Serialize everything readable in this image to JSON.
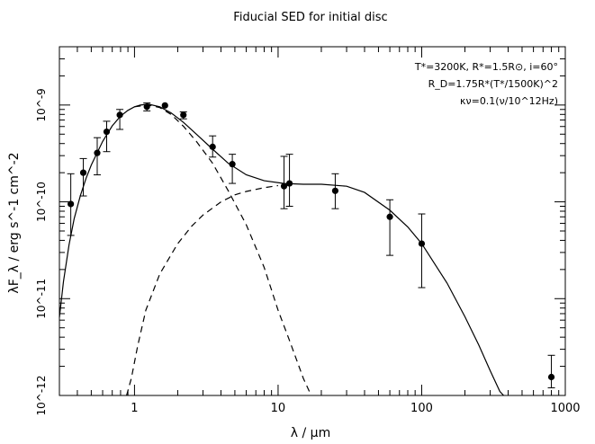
{
  "chart_data": {
    "type": "scatter",
    "title": "Fiducial SED for initial disc",
    "xlabel": "λ / μm",
    "ylabel": "λF_λ / erg s^-1 cm^-2",
    "xscale": "log",
    "yscale": "log",
    "xlim": [
      0.3,
      1000
    ],
    "ylim": [
      1e-12,
      4e-09
    ],
    "x_ticks": [
      1,
      10,
      100,
      1000
    ],
    "x_tick_labels": [
      "1",
      "10",
      "100",
      "1000"
    ],
    "y_ticks": [
      1e-12,
      1e-11,
      1e-10,
      1e-09
    ],
    "y_tick_labels": [
      "10^-12",
      "10^-11",
      "10^-10",
      "10^-9"
    ],
    "annotations": [
      "T*=3200K, R*=1.5R⊙, i=60°",
      "R_D=1.75R*(T*/1500K)^2",
      "κν=0.1(ν/10^12Hz)"
    ],
    "points": [
      {
        "x": 0.36,
        "y": 9.5e-11,
        "lo": 4.5e-11,
        "hi": 1.95e-10
      },
      {
        "x": 0.44,
        "y": 2e-10,
        "lo": 1.15e-10,
        "hi": 2.8e-10
      },
      {
        "x": 0.55,
        "y": 3.2e-10,
        "lo": 1.9e-10,
        "hi": 4.6e-10
      },
      {
        "x": 0.64,
        "y": 5.3e-10,
        "lo": 3.3e-10,
        "hi": 6.8e-10
      },
      {
        "x": 0.79,
        "y": 7.9e-10,
        "lo": 5.6e-10,
        "hi": 9e-10
      },
      {
        "x": 1.22,
        "y": 9.6e-10,
        "lo": 8.7e-10,
        "hi": 1.05e-09
      },
      {
        "x": 1.63,
        "y": 9.9e-10
      },
      {
        "x": 2.19,
        "y": 7.9e-10,
        "lo": 7.2e-10,
        "hi": 8.5e-10
      },
      {
        "x": 3.5,
        "y": 3.7e-10,
        "lo": 2.9e-10,
        "hi": 4.8e-10
      },
      {
        "x": 4.8,
        "y": 2.45e-10,
        "lo": 1.55e-10,
        "hi": 3.1e-10
      },
      {
        "x": 11.0,
        "y": 1.45e-10,
        "lo": 8.5e-11,
        "hi": 2.95e-10
      },
      {
        "x": 12.0,
        "y": 1.55e-10,
        "lo": 9e-11,
        "hi": 3.1e-10
      },
      {
        "x": 25.0,
        "y": 1.3e-10,
        "lo": 8.5e-11,
        "hi": 1.95e-10
      },
      {
        "x": 60.0,
        "y": 7e-11,
        "lo": 2.8e-11,
        "hi": 1.05e-10
      },
      {
        "x": 100.0,
        "y": 3.7e-11,
        "lo": 1.3e-11,
        "hi": 7.5e-11
      },
      {
        "x": 800.0,
        "y": 1.55e-12,
        "lo": 1.2e-12,
        "hi": 2.6e-12
      }
    ],
    "curves": [
      {
        "style": "solid",
        "points": [
          [
            0.3,
            6.4e-12
          ],
          [
            0.32,
            1.5e-11
          ],
          [
            0.35,
            3.6e-11
          ],
          [
            0.38,
            6.7e-11
          ],
          [
            0.42,
            1.16e-10
          ],
          [
            0.46,
            1.75e-10
          ],
          [
            0.5,
            2.4e-10
          ],
          [
            0.6,
            4.2e-10
          ],
          [
            0.7,
            6.1e-10
          ],
          [
            0.8,
            7.7e-10
          ],
          [
            0.9,
            8.8e-10
          ],
          [
            1.0,
            9.6e-10
          ],
          [
            1.1,
            1e-09
          ],
          [
            1.25,
            1.02e-09
          ],
          [
            1.5,
            9.6e-10
          ],
          [
            1.8,
            8.3e-10
          ],
          [
            2.2,
            6.6e-10
          ],
          [
            2.7,
            5e-10
          ],
          [
            3.5,
            3.5e-10
          ],
          [
            4.5,
            2.5e-10
          ],
          [
            6.0,
            1.9e-10
          ],
          [
            8.0,
            1.65e-10
          ],
          [
            11.0,
            1.55e-10
          ],
          [
            15.0,
            1.52e-10
          ],
          [
            20.0,
            1.52e-10
          ],
          [
            30.0,
            1.45e-10
          ],
          [
            40.0,
            1.25e-10
          ],
          [
            60.0,
            8.2e-11
          ],
          [
            80.0,
            5.5e-11
          ],
          [
            100.0,
            3.7e-11
          ],
          [
            150.0,
            1.45e-11
          ],
          [
            200.0,
            6.5e-12
          ],
          [
            250.0,
            3.3e-12
          ],
          [
            300.0,
            1.8e-12
          ],
          [
            350.0,
            1.1e-12
          ],
          [
            372.0,
            1e-12
          ]
        ]
      },
      {
        "style": "dashed",
        "points": [
          [
            1.0,
            9.6e-10
          ],
          [
            1.25,
            1e-09
          ],
          [
            1.5,
            9.4e-10
          ],
          [
            1.8,
            8e-10
          ],
          [
            2.2,
            6e-10
          ],
          [
            2.7,
            4.2e-10
          ],
          [
            3.5,
            2.5e-10
          ],
          [
            4.5,
            1.3e-10
          ],
          [
            6.0,
            5.8e-11
          ],
          [
            8.0,
            2.1e-11
          ],
          [
            10.0,
            7.6e-12
          ],
          [
            12.0,
            3.7e-12
          ],
          [
            15.0,
            1.5e-12
          ],
          [
            17.0,
            1e-12
          ]
        ]
      },
      {
        "style": "dashed",
        "points": [
          [
            0.88,
            1e-12
          ],
          [
            0.95,
            1.5e-12
          ],
          [
            1.05,
            3.2e-12
          ],
          [
            1.2,
            7.6e-12
          ],
          [
            1.5,
            1.8e-11
          ],
          [
            2.0,
            3.7e-11
          ],
          [
            2.5,
            5.6e-11
          ],
          [
            3.0,
            7.3e-11
          ],
          [
            4.0,
            1e-10
          ],
          [
            5.0,
            1.18e-10
          ],
          [
            6.0,
            1.28e-10
          ],
          [
            8.0,
            1.4e-10
          ],
          [
            10.0,
            1.47e-10
          ]
        ]
      }
    ]
  }
}
